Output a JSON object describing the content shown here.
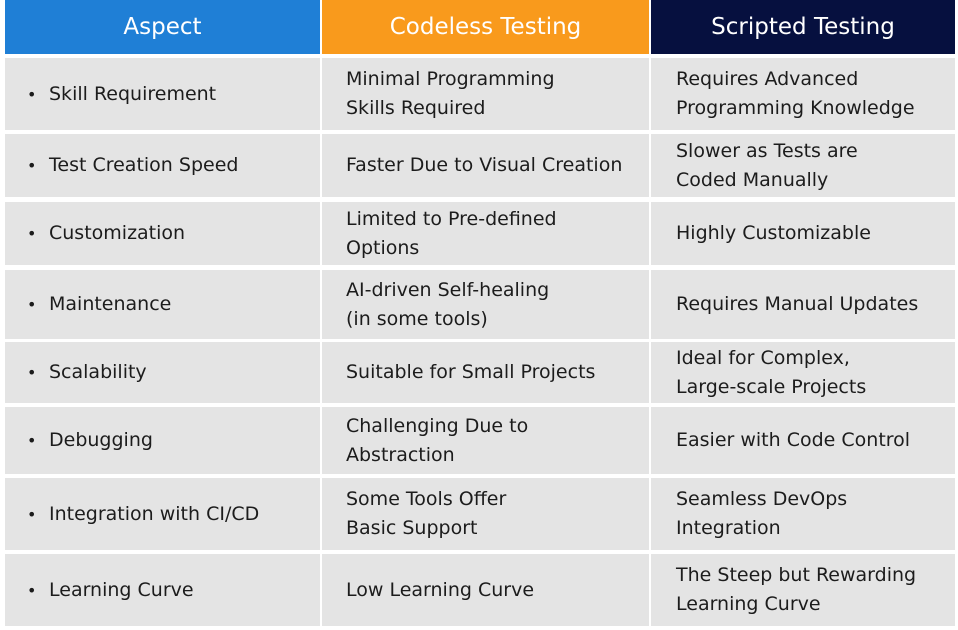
{
  "colors": {
    "aspect_header": "#1f7fd6",
    "codeless_header": "#f99a1c",
    "scripted_header": "#06103f",
    "row_background": "#e4e4e4"
  },
  "header": {
    "aspect": "Aspect",
    "codeless": "Codeless Testing",
    "scripted": "Scripted Testing"
  },
  "bullet_glyph": "•",
  "rows": [
    {
      "aspect": "Skill Requirement",
      "codeless": "Minimal Programming\nSkills Required",
      "scripted": "Requires Advanced\nProgramming Knowledge"
    },
    {
      "aspect": "Test Creation Speed",
      "codeless": "Faster Due to Visual Creation",
      "scripted": "Slower as Tests are\nCoded Manually"
    },
    {
      "aspect": "Customization",
      "codeless": "Limited to Pre-defined\nOptions",
      "scripted": "Highly Customizable"
    },
    {
      "aspect": "Maintenance",
      "codeless": "AI-driven Self-healing\n(in some tools)",
      "scripted": "Requires Manual Updates"
    },
    {
      "aspect": "Scalability",
      "codeless": "Suitable for Small Projects",
      "scripted": "Ideal for Complex,\nLarge-scale Projects"
    },
    {
      "aspect": "Debugging",
      "codeless": "Challenging Due to\nAbstraction",
      "scripted": "Easier with Code Control"
    },
    {
      "aspect": "Integration with CI/CD",
      "codeless": "Some Tools Offer\nBasic Support",
      "scripted": "Seamless DevOps\nIntegration"
    },
    {
      "aspect": "Learning Curve",
      "codeless": "Low Learning Curve",
      "scripted": "The Steep but Rewarding\nLearning Curve"
    }
  ]
}
